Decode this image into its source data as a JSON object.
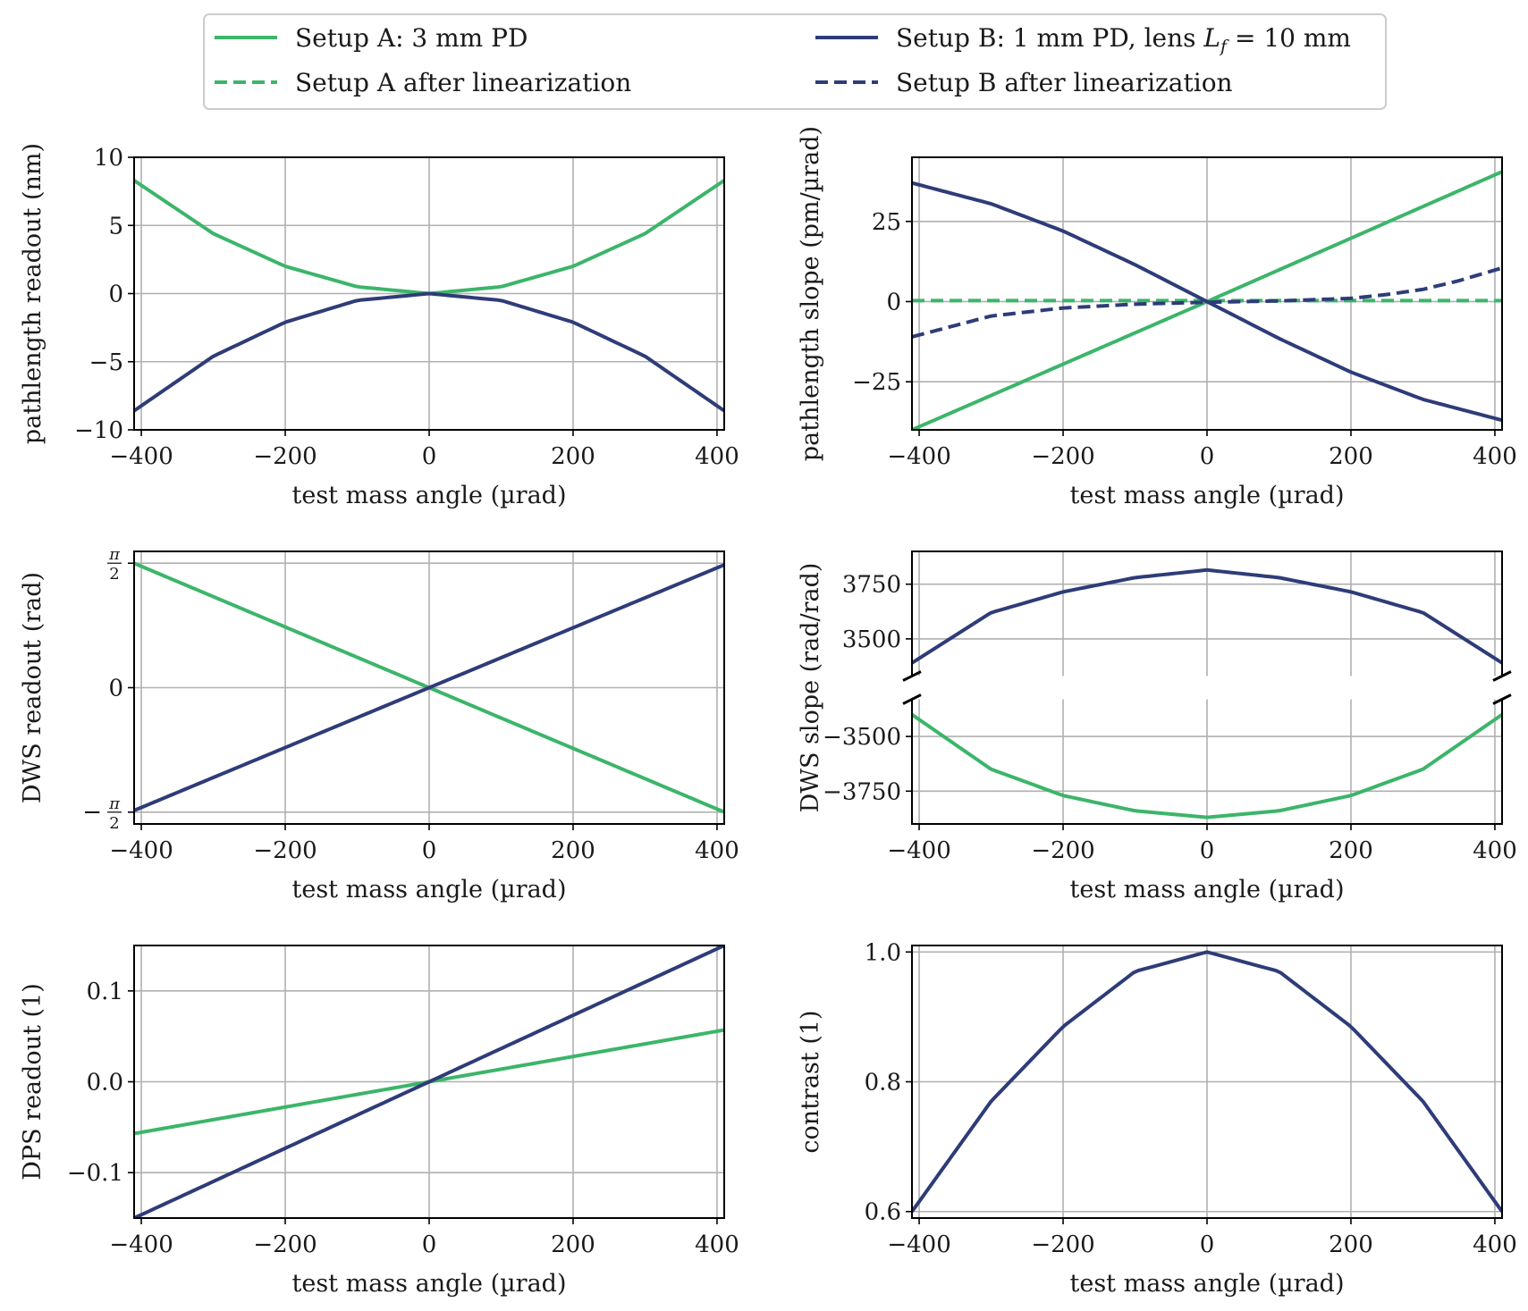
{
  "colors": {
    "setupA": "#3cb56a",
    "setupB": "#2e3c78"
  },
  "legend": {
    "a_raw": "Setup A: 3 mm PD",
    "a_lin": "Setup A after linearization",
    "b_raw_prefix": "Setup B: 1 mm PD, lens ",
    "b_raw_symbol": "L",
    "b_raw_subscript": "f",
    "b_raw_suffix": " = 10 mm",
    "b_lin": "Setup B after linearization"
  },
  "chart_data": [
    {
      "type": "line",
      "title": "",
      "xlabel": "test mass angle (µrad)",
      "ylabel": "pathlength readout (nm)",
      "xlim": [
        -410,
        410
      ],
      "ylim": [
        -10,
        10
      ],
      "xticks": [
        -400,
        -200,
        0,
        200,
        400
      ],
      "xtick_labels": [
        "−400",
        "−200",
        "0",
        "200",
        "400"
      ],
      "yticks": [
        -10,
        -5,
        0,
        5,
        10
      ],
      "ytick_labels": [
        "−10",
        "−5",
        "0",
        "5",
        "10"
      ],
      "series": [
        {
          "name": "Setup A: 3 mm PD",
          "color": "setupA",
          "dash": "solid",
          "x": [
            -410,
            -300,
            -200,
            -100,
            0,
            100,
            200,
            300,
            410
          ],
          "y": [
            8.3,
            4.4,
            2.0,
            0.5,
            0,
            0.5,
            2.0,
            4.4,
            8.3
          ]
        },
        {
          "name": "Setup B: 1 mm PD, lens L_f = 10 mm",
          "color": "setupB",
          "dash": "solid",
          "x": [
            -410,
            -300,
            -200,
            -100,
            0,
            100,
            200,
            300,
            410
          ],
          "y": [
            -8.6,
            -4.6,
            -2.1,
            -0.5,
            0,
            -0.5,
            -2.1,
            -4.6,
            -8.6
          ]
        }
      ]
    },
    {
      "type": "line",
      "title": "",
      "xlabel": "test mass angle (µrad)",
      "ylabel": "pathlength slope (pm/µrad)",
      "xlim": [
        -410,
        410
      ],
      "ylim": [
        -40,
        45
      ],
      "xticks": [
        -400,
        -200,
        0,
        200,
        400
      ],
      "xtick_labels": [
        "−400",
        "−200",
        "0",
        "200",
        "400"
      ],
      "yticks": [
        -25,
        0,
        25
      ],
      "ytick_labels": [
        "−25",
        "0",
        "25"
      ],
      "series": [
        {
          "name": "Setup A: 3 mm PD",
          "color": "setupA",
          "dash": "solid",
          "x": [
            -410,
            0,
            410
          ],
          "y": [
            -40,
            0,
            40.5
          ]
        },
        {
          "name": "Setup A after linearization",
          "color": "setupA",
          "dash": "dashed",
          "x": [
            -410,
            0,
            410
          ],
          "y": [
            0.3,
            0.3,
            0.3
          ]
        },
        {
          "name": "Setup B: 1 mm PD, lens L_f = 10 mm",
          "color": "setupB",
          "dash": "solid",
          "x": [
            -410,
            -300,
            -200,
            -100,
            0,
            100,
            200,
            300,
            410
          ],
          "y": [
            37,
            30.5,
            22,
            11.5,
            0,
            -11.5,
            -22,
            -30.5,
            -37
          ]
        },
        {
          "name": "Setup B after linearization",
          "color": "setupB",
          "dash": "dashed",
          "x": [
            -410,
            -300,
            -200,
            -100,
            0,
            100,
            200,
            250,
            300,
            350,
            410
          ],
          "y": [
            -11,
            -4.5,
            -2.0,
            -0.8,
            -0.2,
            0.2,
            1.0,
            2.2,
            3.8,
            6.5,
            10.5
          ]
        }
      ]
    },
    {
      "type": "line",
      "title": "",
      "xlabel": "test mass angle (µrad)",
      "ylabel": "DWS readout (rad)",
      "xlim": [
        -410,
        410
      ],
      "ylim": [
        -1.72,
        1.72
      ],
      "xticks": [
        -400,
        -200,
        0,
        200,
        400
      ],
      "xtick_labels": [
        "−400",
        "−200",
        "0",
        "200",
        "400"
      ],
      "yticks": [
        -1.5708,
        0,
        1.5708
      ],
      "ytick_labels": [
        "−π/2",
        "0",
        "π/2"
      ],
      "series": [
        {
          "name": "Setup A: 3 mm PD",
          "color": "setupA",
          "dash": "solid",
          "x": [
            -410,
            0,
            410
          ],
          "y": [
            1.57,
            0,
            -1.57
          ]
        },
        {
          "name": "Setup B: 1 mm PD, lens L_f = 10 mm",
          "color": "setupB",
          "dash": "solid",
          "x": [
            -410,
            0,
            410
          ],
          "y": [
            -1.55,
            0,
            1.55
          ]
        }
      ]
    },
    {
      "type": "line",
      "title": "",
      "xlabel": "test mass angle (µrad)",
      "ylabel": "DWS slope (rad/rad)",
      "xlim": [
        -410,
        410
      ],
      "broken_y_axis": true,
      "ylim_upper": [
        3330,
        3900
      ],
      "ylim_lower": [
        -3900,
        -3330
      ],
      "xticks": [
        -400,
        -200,
        0,
        200,
        400
      ],
      "xtick_labels": [
        "−400",
        "−200",
        "0",
        "200",
        "400"
      ],
      "yticks_upper": [
        3500,
        3750
      ],
      "ytick_labels_upper": [
        "3500",
        "3750"
      ],
      "yticks_lower": [
        -3750,
        -3500
      ],
      "ytick_labels_lower": [
        "−3750",
        "−3500"
      ],
      "series": [
        {
          "name": "Setup B: 1 mm PD, lens L_f = 10 mm",
          "color": "setupB",
          "dash": "solid",
          "x": [
            -410,
            -300,
            -200,
            -100,
            0,
            100,
            200,
            300,
            410
          ],
          "y": [
            3390,
            3620,
            3715,
            3780,
            3815,
            3780,
            3715,
            3620,
            3390
          ]
        },
        {
          "name": "Setup A: 3 mm PD",
          "color": "setupA",
          "dash": "solid",
          "x": [
            -410,
            -300,
            -200,
            -100,
            0,
            100,
            200,
            300,
            410
          ],
          "y": [
            -3400,
            -3650,
            -3770,
            -3840,
            -3870,
            -3840,
            -3770,
            -3650,
            -3400
          ]
        }
      ]
    },
    {
      "type": "line",
      "title": "",
      "xlabel": "test mass angle (µrad)",
      "ylabel": "DPS readout (1)",
      "xlim": [
        -410,
        410
      ],
      "ylim": [
        -0.15,
        0.15
      ],
      "xticks": [
        -400,
        -200,
        0,
        200,
        400
      ],
      "xtick_labels": [
        "−400",
        "−200",
        "0",
        "200",
        "400"
      ],
      "yticks": [
        -0.1,
        0.0,
        0.1
      ],
      "ytick_labels": [
        "−0.1",
        "0.0",
        "0.1"
      ],
      "series": [
        {
          "name": "Setup A: 3 mm PD",
          "color": "setupA",
          "dash": "solid",
          "x": [
            -410,
            0,
            410
          ],
          "y": [
            -0.057,
            0,
            0.057
          ]
        },
        {
          "name": "Setup B: 1 mm PD, lens L_f = 10 mm",
          "color": "setupB",
          "dash": "solid",
          "x": [
            -410,
            0,
            410
          ],
          "y": [
            -0.15,
            0,
            0.15
          ]
        }
      ]
    },
    {
      "type": "line",
      "title": "",
      "xlabel": "test mass angle (µrad)",
      "ylabel": "contrast (1)",
      "xlim": [
        -410,
        410
      ],
      "ylim": [
        0.59,
        1.01
      ],
      "xticks": [
        -400,
        -200,
        0,
        200,
        400
      ],
      "xtick_labels": [
        "−400",
        "−200",
        "0",
        "200",
        "400"
      ],
      "yticks": [
        0.6,
        0.8,
        1.0
      ],
      "ytick_labels": [
        "0.6",
        "0.8",
        "1.0"
      ],
      "series": [
        {
          "name": "Setup B: 1 mm PD, lens L_f = 10 mm",
          "color": "setupB",
          "dash": "solid",
          "x": [
            -410,
            -300,
            -200,
            -100,
            0,
            100,
            200,
            300,
            410
          ],
          "y": [
            0.6,
            0.77,
            0.885,
            0.97,
            1.0,
            0.97,
            0.885,
            0.77,
            0.6
          ]
        }
      ]
    }
  ]
}
